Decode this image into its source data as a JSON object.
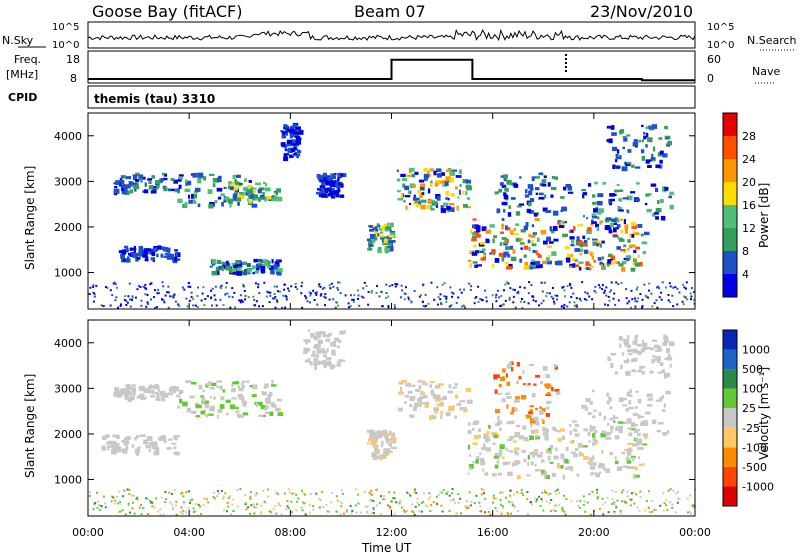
{
  "header": {
    "station": "Goose Bay (fitACF)",
    "beam": "Beam 07",
    "date": "23/Nov/2010"
  },
  "strip_labels": {
    "nsky": "N.Sky",
    "freq_line1": "Freq.",
    "freq_line2": "[MHz]",
    "cpid": "CPID",
    "nsearch": "N.Search",
    "nave": "Nave",
    "nsky_ticks": [
      "10^5",
      "10^0"
    ],
    "nsearch_ticks": [
      "10^5",
      "10^0"
    ],
    "freq_ticks": [
      "18",
      "8"
    ],
    "nave_ticks": [
      "60",
      "0"
    ],
    "cpid_value": "themis (tau) 3310"
  },
  "colors": {
    "power": [
      "#0000e6",
      "#1e50c8",
      "#32a05a",
      "#50be78",
      "#ffdc00",
      "#ff9600",
      "#ff5000",
      "#e60000"
    ],
    "velocity": [
      "#dc0000",
      "#ff4600",
      "#ff8c00",
      "#ffc864",
      "#c8c8c8",
      "#64c832",
      "#288c46",
      "#1e64c8",
      "#0a28b4"
    ]
  },
  "chart_data": [
    {
      "type": "heatmap",
      "quantity": "power",
      "ylabel": "Slant Range [km]",
      "yticks": [
        1000,
        2000,
        3000,
        4000
      ],
      "ylim": [
        200,
        4500
      ],
      "colorbar_label": "Power [dB]",
      "colorbar_ticks": [
        "4",
        "8",
        "12",
        "16",
        "20",
        "24",
        "28"
      ],
      "colorbar_range": [
        0,
        30
      ]
    },
    {
      "type": "heatmap",
      "quantity": "velocity",
      "ylabel": "Slant Range [km]",
      "yticks": [
        1000,
        2000,
        3000,
        4000
      ],
      "ylim": [
        200,
        4500
      ],
      "xlabel": "Time UT",
      "xticks": [
        "00:00",
        "04:00",
        "08:00",
        "12:00",
        "16:00",
        "20:00",
        "00:00"
      ],
      "colorbar_label": "Velocity [m s⁻¹]",
      "colorbar_ticks": [
        "1000",
        "500",
        "100",
        "25",
        "-25",
        "-100",
        "-500",
        "-1000"
      ]
    }
  ],
  "time_series": {
    "frequency_mhz": [
      {
        "t": 0.0,
        "v": 10.5
      },
      {
        "t": 12.0,
        "v": 10.5
      },
      {
        "t": 12.0,
        "v": 16.5
      },
      {
        "t": 15.2,
        "v": 16.5
      },
      {
        "t": 15.2,
        "v": 10.5
      },
      {
        "t": 21.9,
        "v": 10.5
      },
      {
        "t": 21.9,
        "v": 10.1
      },
      {
        "t": 24.0,
        "v": 10.1
      }
    ]
  }
}
